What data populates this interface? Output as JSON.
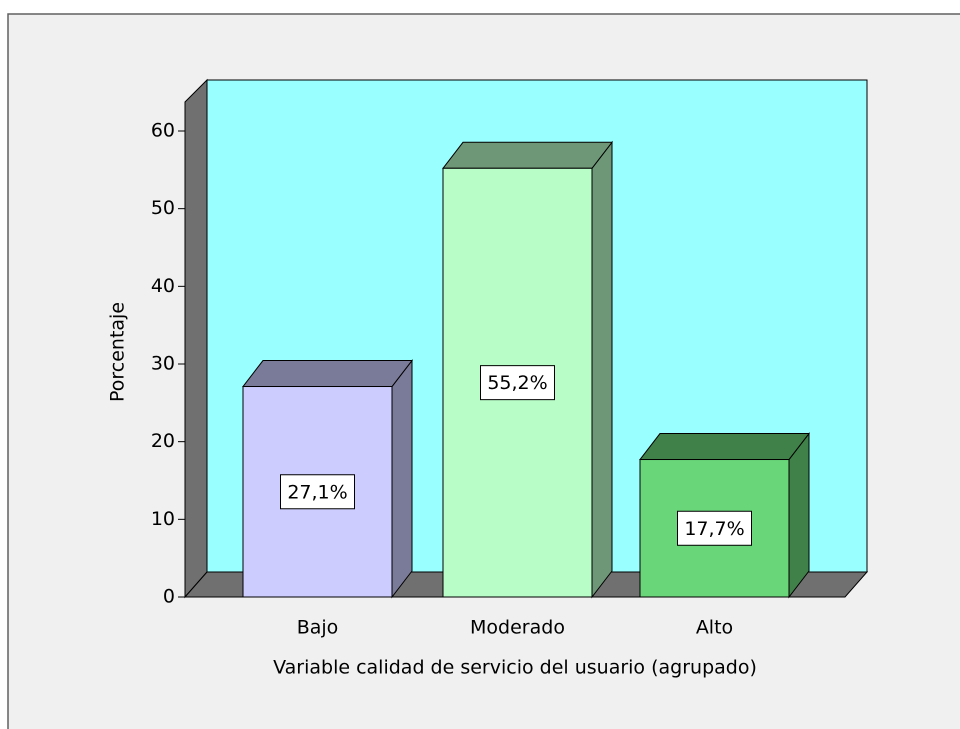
{
  "chart_data": {
    "type": "bar3d",
    "x_label": "Variable calidad de servicio del usuario (agrupado)",
    "y_label": "Porcentaje",
    "categories": [
      "Bajo",
      "Moderado",
      "Alto"
    ],
    "values": [
      27.1,
      55.2,
      17.7
    ],
    "value_labels": [
      "27,1%",
      "55,2%",
      "17,7%"
    ],
    "colors": [
      "#ccccff",
      "#b8fcc8",
      "#6ad67a"
    ],
    "ylim": [
      0,
      60
    ],
    "yticks": [
      0,
      10,
      20,
      30,
      40,
      50,
      60
    ]
  }
}
